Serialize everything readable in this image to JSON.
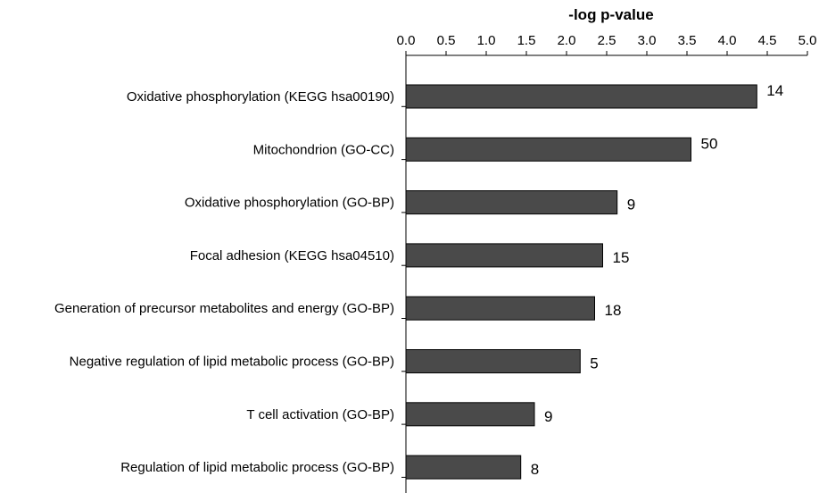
{
  "chart_data": {
    "type": "bar",
    "orientation": "horizontal",
    "title": "",
    "xlabel": "-log p-value",
    "ylabel": "",
    "x_axis_position": "top",
    "xlim": [
      0,
      5
    ],
    "x_ticks": [
      "0.0",
      "0.5",
      "1.0",
      "1.5",
      "2.0",
      "2.5",
      "3.0",
      "3.5",
      "4.0",
      "4.5",
      "5.0"
    ],
    "grid": false,
    "legend": "none",
    "categories": [
      "Oxidative phosphorylation (KEGG hsa00190)",
      "Mitochondrion (GO-CC)",
      "Oxidative phosphorylation (GO-BP)",
      "Focal adhesion (KEGG hsa04510)",
      "Generation of precursor metabolites and energy (GO-BP)",
      "Negative regulation of lipid metabolic process (GO-BP)",
      "T cell activation (GO-BP)",
      "Regulation of lipid metabolic process (GO-BP)"
    ],
    "values": [
      4.37,
      3.55,
      2.63,
      2.45,
      2.35,
      2.17,
      1.6,
      1.43
    ],
    "data_labels": [
      "14",
      "50",
      "9",
      "15",
      "18",
      "5",
      "9",
      "8"
    ],
    "bar_color": "#4a4a4a",
    "bar_edge_color": "#000000"
  }
}
